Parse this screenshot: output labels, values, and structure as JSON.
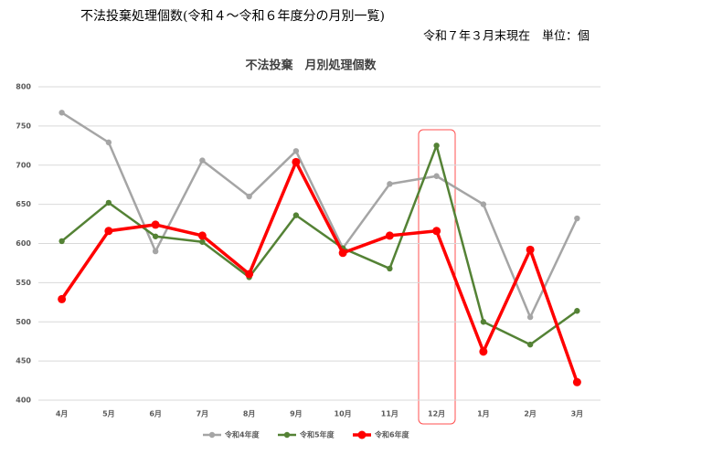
{
  "chart_data": {
    "type": "line",
    "title": "不法投棄処理個数(令和４～令和６年度分の月別一覧)",
    "subtitle": "令和７年３月末現在　単位：個",
    "chart_title": "不法投棄　月別処理個数",
    "categories": [
      "4月",
      "5月",
      "6月",
      "7月",
      "8月",
      "9月",
      "10月",
      "11月",
      "12月",
      "1月",
      "2月",
      "3月"
    ],
    "series": [
      {
        "name": "令和4年度",
        "color": "#a5a5a5",
        "values": [
          767,
          729,
          590,
          706,
          660,
          718,
          594,
          676,
          686,
          650,
          506,
          632
        ]
      },
      {
        "name": "令和5年度",
        "color": "#548235",
        "values": [
          603,
          652,
          609,
          602,
          557,
          636,
          594,
          568,
          725,
          500,
          471,
          514
        ]
      },
      {
        "name": "令和6年度",
        "color": "#ff0000",
        "values": [
          529,
          616,
          624,
          610,
          561,
          704,
          588,
          610,
          616,
          462,
          592,
          423
        ]
      }
    ],
    "ylim": [
      400,
      800
    ],
    "yticks": [
      400,
      450,
      500,
      550,
      600,
      650,
      700,
      750,
      800
    ],
    "grid": true,
    "legend": "bottom"
  }
}
